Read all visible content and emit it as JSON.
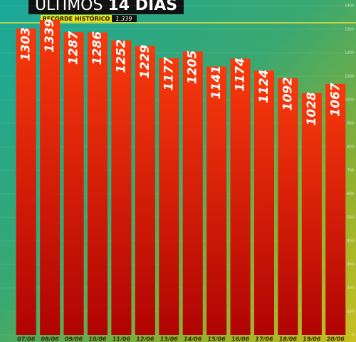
{
  "chart_data": {
    "type": "bar",
    "title": [
      "ÚLTIMOS",
      "14 DIAS"
    ],
    "annotation": {
      "label": "RECORDE HISTÓRICO",
      "value": "1.339"
    },
    "categories": [
      "07/06",
      "08/06",
      "09/06",
      "10/06",
      "11/06",
      "12/06",
      "13/06",
      "14/06",
      "15/06",
      "16/06",
      "17/06",
      "18/06",
      "19/06",
      "20/06"
    ],
    "values": [
      1303,
      1339,
      1287,
      1286,
      1252,
      1229,
      1177,
      1205,
      1141,
      1174,
      1124,
      1092,
      1028,
      1067
    ],
    "color": "#f0300c",
    "ylim": [
      0,
      1400
    ],
    "yticks": [
      0,
      100,
      200,
      300,
      400,
      500,
      600,
      700,
      800,
      900,
      1000,
      1100,
      1200,
      1300,
      1400
    ],
    "grid": true
  }
}
